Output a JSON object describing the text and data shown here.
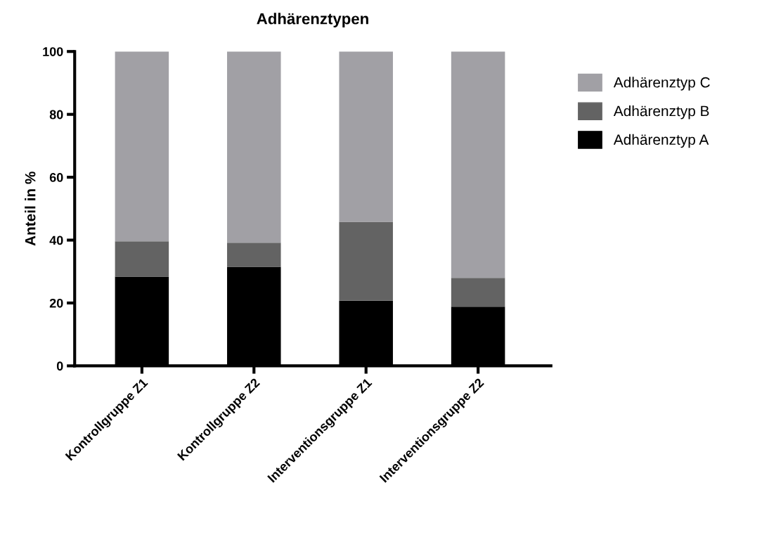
{
  "chart_data": {
    "type": "bar",
    "title": "Adhärenztypen",
    "ylabel": "Anteil in %",
    "stacked": true,
    "categories": [
      "Kontrollgruppe Z1",
      "Kontrollgruppe Z2",
      "Interventionsgruppe Z1",
      "Interventionsgruppe Z2"
    ],
    "series": [
      {
        "name": "Adhärenztyp A",
        "color": "#000000",
        "values": [
          28.4,
          31.5,
          20.7,
          18.8
        ]
      },
      {
        "name": "Adhärenztyp B",
        "color": "#636363",
        "values": [
          11.2,
          7.7,
          25.1,
          9.2
        ]
      },
      {
        "name": "Adhärenztyp C",
        "color": "#a1a0a5",
        "values": [
          60.4,
          60.8,
          54.2,
          72.0
        ]
      }
    ],
    "ylim": [
      0,
      100
    ],
    "yticks": [
      0,
      20,
      40,
      60,
      80,
      100
    ],
    "grid": false,
    "legend": "right"
  }
}
